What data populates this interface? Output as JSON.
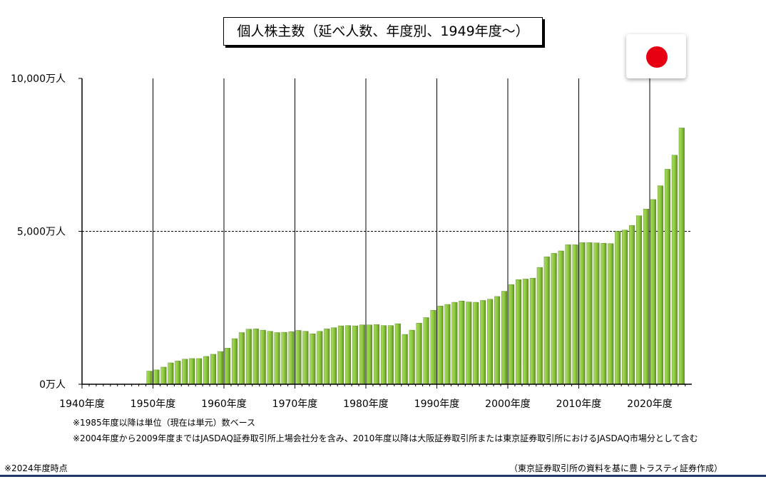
{
  "chart_data": {
    "type": "bar",
    "title": "個人株主数（延べ人数、年度別、1949年度～）",
    "ylim": [
      0,
      10000
    ],
    "y_unit": "万人",
    "y_ticks": [
      {
        "value": 0,
        "label": "0万人"
      },
      {
        "value": 5000,
        "label": "5,000万人"
      },
      {
        "value": 10000,
        "label": "10,000万人"
      }
    ],
    "x_ticks": [
      {
        "year": 1940,
        "label": "1940年度"
      },
      {
        "year": 1950,
        "label": "1950年度"
      },
      {
        "year": 1960,
        "label": "1960年度"
      },
      {
        "year": 1970,
        "label": "1970年度"
      },
      {
        "year": 1980,
        "label": "1980年度"
      },
      {
        "year": 1990,
        "label": "1990年度"
      },
      {
        "year": 2000,
        "label": "2000年度"
      },
      {
        "year": 2010,
        "label": "2010年度"
      },
      {
        "year": 2020,
        "label": "2020年度"
      }
    ],
    "gridlines": "vertical solid every 10 years; horizontal dashed at 5,000万人",
    "bar_color": "#8cc63f",
    "x": [
      1949,
      1950,
      1951,
      1952,
      1953,
      1954,
      1955,
      1956,
      1957,
      1958,
      1959,
      1960,
      1961,
      1962,
      1963,
      1964,
      1965,
      1966,
      1967,
      1968,
      1969,
      1970,
      1971,
      1972,
      1973,
      1974,
      1975,
      1976,
      1977,
      1978,
      1979,
      1980,
      1981,
      1982,
      1983,
      1984,
      1985,
      1986,
      1987,
      1988,
      1989,
      1990,
      1991,
      1992,
      1993,
      1994,
      1995,
      1996,
      1997,
      1998,
      1999,
      2000,
      2001,
      2002,
      2003,
      2004,
      2005,
      2006,
      2007,
      2008,
      2009,
      2010,
      2011,
      2012,
      2013,
      2014,
      2015,
      2016,
      2017,
      2018,
      2019,
      2020,
      2021,
      2022,
      2023,
      2024
    ],
    "values": [
      430,
      470,
      560,
      700,
      760,
      820,
      840,
      840,
      910,
      980,
      1070,
      1180,
      1490,
      1690,
      1800,
      1810,
      1770,
      1730,
      1690,
      1700,
      1720,
      1760,
      1730,
      1650,
      1730,
      1810,
      1850,
      1910,
      1920,
      1910,
      1940,
      1940,
      1950,
      1920,
      1920,
      1980,
      1630,
      1770,
      2000,
      2180,
      2420,
      2560,
      2610,
      2680,
      2720,
      2690,
      2680,
      2740,
      2780,
      2870,
      3040,
      3260,
      3420,
      3440,
      3470,
      3820,
      4170,
      4280,
      4360,
      4560,
      4560,
      4630,
      4630,
      4620,
      4610,
      4600,
      5000,
      5040,
      5190,
      5510,
      5730,
      6040,
      6490,
      7030,
      7490,
      8380
    ]
  },
  "notes": {
    "note1": "※1985年度以降は単位（現在は単元）数ベース",
    "note2": "※2004年度から2009年度まではJASDAQ証券取引所上場会社分を含み、2010年度以降は大阪証券取引所または東京証券取引所におけるJASDAQ市場分として含む",
    "as_of": "※2024年度時点",
    "source": "（東京証券取引所の資料を基に豊トラスティ証券作成）"
  },
  "flag": {
    "icon": "japan-flag-icon",
    "disc_color": "#e60012"
  }
}
